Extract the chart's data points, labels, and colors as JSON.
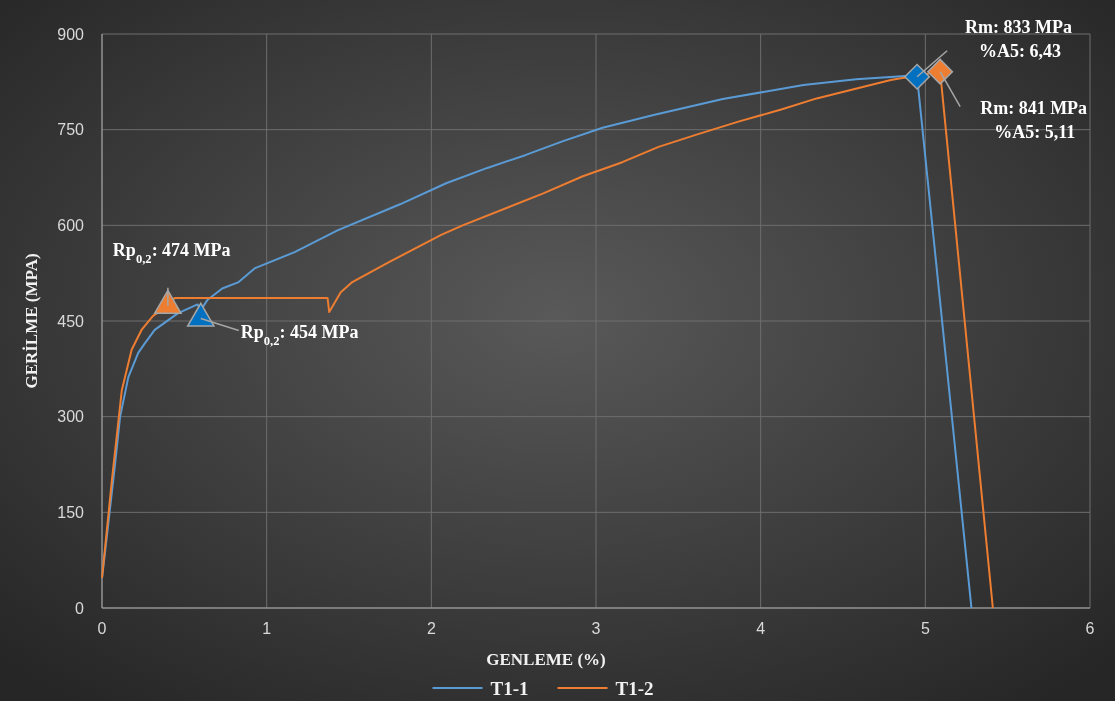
{
  "chart_data": {
    "type": "line",
    "xlabel": "GENLEME (%)",
    "ylabel": "GERİLME (MPA)",
    "xlim": [
      0,
      6
    ],
    "xticks": [
      0,
      1,
      2,
      3,
      4,
      5,
      6
    ],
    "ylim": [
      0,
      900
    ],
    "yticks": [
      0,
      150,
      300,
      450,
      600,
      750,
      900
    ],
    "grid": true,
    "legend": "bottom",
    "line_style": "solid",
    "series": [
      {
        "name": "T1-1",
        "color": "#5b9bd5",
        "marker": "none",
        "x": [
          0,
          0.02,
          0.08,
          0.11,
          0.16,
          0.22,
          0.26,
          0.32,
          0.46,
          0.58,
          0.6,
          0.64,
          0.73,
          0.83,
          0.93,
          1.17,
          1.43,
          1.81,
          2.09,
          2.34,
          2.57,
          2.8,
          3.04,
          3.35,
          3.77,
          4.26,
          4.58,
          4.88,
          4.95,
          5.28
        ],
        "values": [
          47,
          91,
          227,
          300,
          362,
          400,
          415,
          436,
          462,
          476,
          467,
          483,
          501,
          511,
          533,
          558,
          592,
          633,
          666,
          690,
          710,
          732,
          753,
          773,
          798,
          820,
          829,
          834,
          833,
          0
        ]
      },
      {
        "name": "T1-2",
        "color": "#ed7d31",
        "marker": "none",
        "x": [
          0,
          0.06,
          0.12,
          0.18,
          0.24,
          0.31,
          0.4,
          0.44,
          1.37,
          1.38,
          1.45,
          1.52,
          1.74,
          2.06,
          2.19,
          2.68,
          2.92,
          3.16,
          3.38,
          3.62,
          3.87,
          4.13,
          4.34,
          4.79,
          5.09,
          5.41
        ],
        "values": [
          47,
          200,
          341,
          405,
          436,
          458,
          474,
          486,
          486,
          464,
          495,
          511,
          542,
          585,
          600,
          650,
          677,
          699,
          723,
          743,
          763,
          782,
          799,
          828,
          841,
          0
        ]
      },
      {
        "type": "scatter",
        "color": "#0070c0",
        "marker": "triangle",
        "x": [
          0.6
        ],
        "values": [
          454
        ]
      },
      {
        "type": "scatter",
        "color": "#ed7d31",
        "marker": "triangle",
        "x": [
          0.4
        ],
        "values": [
          474
        ]
      },
      {
        "type": "scatter",
        "color": "#0070c0",
        "marker": "diamond",
        "x": [
          4.95
        ],
        "values": [
          833
        ]
      },
      {
        "type": "scatter",
        "color": "#ed7d31",
        "marker": "diamond",
        "x": [
          5.09
        ],
        "values": [
          841
        ]
      }
    ],
    "annotations": [
      {
        "text": "Rp$_{0,2}$: 474 MPa",
        "x": 0.4,
        "y": 474
      },
      {
        "text": "Rp$_{0,2}$: 454 MPa",
        "x": 0.6,
        "y": 454
      },
      {
        "text": "Rm: 833 MPa\n%A5: 6,43",
        "x": 4.95,
        "y": 833
      },
      {
        "text": "Rm: 841 MPa\n%A5: 5,11",
        "x": 5.09,
        "y": 841
      }
    ]
  }
}
